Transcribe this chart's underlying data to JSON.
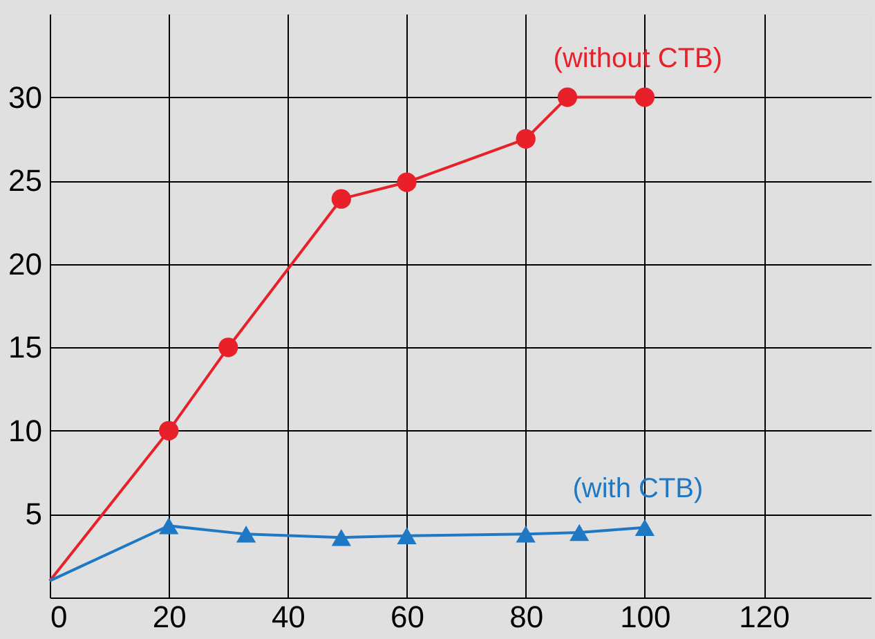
{
  "chart_data": {
    "type": "line",
    "xlim": [
      0,
      138
    ],
    "xticks": [
      0,
      20,
      40,
      60,
      80,
      100,
      120
    ],
    "ylim": [
      0,
      35
    ],
    "yticks": [
      {
        "value": 0,
        "label": null
      },
      5,
      10,
      15,
      20,
      25,
      30
    ],
    "grid": true,
    "line_style": "solid",
    "series": [
      {
        "name": "(without CTB)",
        "color": "#e8202a",
        "marker": "circle",
        "x": [
          0,
          20,
          30,
          49,
          60,
          80,
          87,
          100
        ],
        "values": [
          1,
          10,
          15,
          23.9,
          24.9,
          27.5,
          30,
          30
        ]
      },
      {
        "name": "(with CTB)",
        "color": "#1f78c4",
        "marker": "triangle",
        "x": [
          0,
          20,
          33,
          49,
          60,
          80,
          89,
          100
        ],
        "values": [
          1,
          4.3,
          3.8,
          3.6,
          3.7,
          3.8,
          3.9,
          4.2
        ]
      }
    ]
  }
}
